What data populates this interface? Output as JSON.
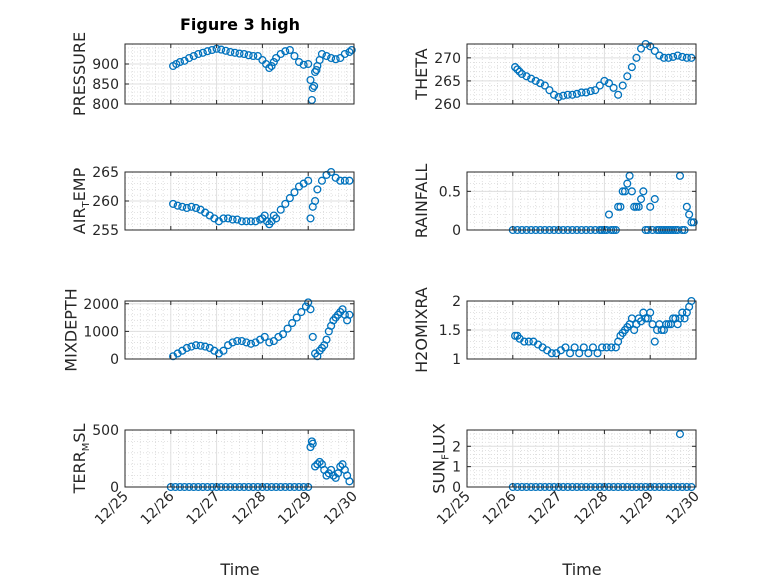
{
  "figure": {
    "title": "Figure 3 high",
    "xlabel": "Time"
  },
  "colors": {
    "marker": "#0072BD",
    "axis": "#262626",
    "grid_major": "#DFDFDF",
    "grid_minor": "#D9D9D9",
    "background": "#FFFFFF"
  },
  "chart_data": [
    {
      "type": "scatter",
      "name": "PRESSURE",
      "ylabel_parts": [
        [
          "PRESSURE",
          ""
        ]
      ],
      "xlim": [
        0,
        5
      ],
      "ylim": [
        800,
        950
      ],
      "yticks": [
        800,
        850,
        900
      ],
      "ytick_labels": [
        "800",
        "850",
        "900"
      ],
      "xticks": [
        0,
        1,
        2,
        3,
        4,
        5
      ],
      "xtick_labels": [
        "12/25",
        "12/26",
        "12/27",
        "12/28",
        "12/29",
        "12/30"
      ],
      "show_xticklabels": false,
      "x": [
        1.05,
        1.12,
        1.2,
        1.3,
        1.4,
        1.5,
        1.6,
        1.7,
        1.8,
        1.9,
        2.0,
        2.1,
        2.2,
        2.3,
        2.4,
        2.5,
        2.6,
        2.7,
        2.8,
        2.9,
        3.0,
        3.08,
        3.15,
        3.2,
        3.25,
        3.3,
        3.4,
        3.5,
        3.6,
        3.7,
        3.8,
        3.9,
        4.0,
        4.05,
        4.08,
        4.1,
        4.13,
        4.15,
        4.18,
        4.2,
        4.25,
        4.3,
        4.4,
        4.5,
        4.6,
        4.7,
        4.8,
        4.9,
        4.95
      ],
      "y": [
        895,
        900,
        905,
        908,
        915,
        920,
        925,
        928,
        932,
        935,
        938,
        936,
        933,
        930,
        928,
        926,
        925,
        922,
        920,
        920,
        910,
        900,
        890,
        895,
        905,
        915,
        925,
        932,
        935,
        920,
        905,
        898,
        900,
        860,
        810,
        840,
        845,
        880,
        885,
        895,
        910,
        925,
        920,
        915,
        912,
        915,
        925,
        930,
        935
      ]
    },
    {
      "type": "scatter",
      "name": "THETA",
      "ylabel_parts": [
        [
          "THETA",
          ""
        ]
      ],
      "xlim": [
        0,
        5
      ],
      "ylim": [
        260,
        273
      ],
      "yticks": [
        260,
        265,
        270
      ],
      "ytick_labels": [
        "260",
        "265",
        "270"
      ],
      "xticks": [
        0,
        1,
        2,
        3,
        4,
        5
      ],
      "xtick_labels": [
        "12/25",
        "12/26",
        "12/27",
        "12/28",
        "12/29",
        "12/30"
      ],
      "show_xticklabels": false,
      "x": [
        1.05,
        1.1,
        1.15,
        1.2,
        1.3,
        1.4,
        1.5,
        1.6,
        1.7,
        1.8,
        1.9,
        2.0,
        2.1,
        2.2,
        2.3,
        2.4,
        2.5,
        2.6,
        2.7,
        2.8,
        2.9,
        3.0,
        3.1,
        3.2,
        3.3,
        3.4,
        3.5,
        3.6,
        3.7,
        3.8,
        3.9,
        4.0,
        4.1,
        4.2,
        4.3,
        4.4,
        4.5,
        4.6,
        4.7,
        4.8,
        4.9
      ],
      "y": [
        268,
        267.5,
        267,
        266.5,
        266,
        265.5,
        265,
        264.5,
        264,
        263,
        262,
        261.5,
        261.8,
        262,
        262,
        262.2,
        262.5,
        262.5,
        262.8,
        263,
        264,
        265,
        264.5,
        263.5,
        262,
        264,
        266,
        268,
        270,
        272,
        273,
        272.5,
        271.5,
        270.5,
        270,
        270,
        270.2,
        270.5,
        270.2,
        270,
        270
      ]
    },
    {
      "type": "scatter",
      "name": "AIR_TEMP",
      "ylabel_parts": [
        [
          "AIR",
          ""
        ],
        [
          "T",
          "sub"
        ],
        [
          "EMP",
          ""
        ]
      ],
      "xlim": [
        0,
        5
      ],
      "ylim": [
        255,
        265
      ],
      "yticks": [
        255,
        260,
        265
      ],
      "ytick_labels": [
        "255",
        "260",
        "265"
      ],
      "xticks": [
        0,
        1,
        2,
        3,
        4,
        5
      ],
      "xtick_labels": [
        "12/25",
        "12/26",
        "12/27",
        "12/28",
        "12/29",
        "12/30"
      ],
      "show_xticklabels": false,
      "x": [
        1.05,
        1.15,
        1.25,
        1.35,
        1.45,
        1.55,
        1.65,
        1.75,
        1.85,
        1.95,
        2.05,
        2.15,
        2.25,
        2.35,
        2.45,
        2.55,
        2.65,
        2.75,
        2.85,
        2.95,
        3.0,
        3.05,
        3.1,
        3.15,
        3.2,
        3.25,
        3.3,
        3.4,
        3.5,
        3.6,
        3.7,
        3.8,
        3.9,
        4.0,
        4.05,
        4.1,
        4.15,
        4.2,
        4.3,
        4.4,
        4.5,
        4.6,
        4.7,
        4.8,
        4.9
      ],
      "y": [
        259.5,
        259.2,
        259,
        258.8,
        259,
        258.8,
        258.5,
        258,
        257.5,
        257,
        256.5,
        257,
        257,
        256.8,
        256.8,
        256.5,
        256.5,
        256.5,
        256.5,
        256.8,
        257,
        257.5,
        256.5,
        256,
        256.5,
        257.5,
        257,
        258.5,
        259.5,
        260.5,
        261.5,
        262.5,
        263,
        263.5,
        257,
        259,
        260,
        262,
        263.5,
        264.5,
        265,
        264,
        263.5,
        263.5,
        263.5
      ]
    },
    {
      "type": "scatter",
      "name": "RAINFALL",
      "ylabel_parts": [
        [
          "RAINFALL",
          ""
        ]
      ],
      "xlim": [
        0,
        5
      ],
      "ylim": [
        0,
        0.75
      ],
      "yticks": [
        0,
        0.5
      ],
      "ytick_labels": [
        "0",
        "0.5"
      ],
      "xticks": [
        0,
        1,
        2,
        3,
        4,
        5
      ],
      "xtick_labels": [
        "12/25",
        "12/26",
        "12/27",
        "12/28",
        "12/29",
        "12/30"
      ],
      "show_xticklabels": false,
      "x": [
        1.0,
        1.1,
        1.2,
        1.3,
        1.4,
        1.5,
        1.6,
        1.7,
        1.8,
        1.9,
        2.0,
        2.1,
        2.2,
        2.3,
        2.4,
        2.5,
        2.6,
        2.7,
        2.8,
        2.9,
        2.95,
        3.0,
        3.05,
        3.1,
        3.15,
        3.2,
        3.25,
        3.3,
        3.35,
        3.4,
        3.45,
        3.5,
        3.55,
        3.6,
        3.65,
        3.7,
        3.75,
        3.8,
        3.85,
        3.9,
        3.95,
        4.0,
        4.05,
        4.1,
        4.15,
        4.2,
        4.25,
        4.3,
        4.35,
        4.4,
        4.45,
        4.5,
        4.55,
        4.6,
        4.65,
        4.7,
        4.75,
        4.8,
        4.85,
        4.9,
        4.95
      ],
      "y": [
        0,
        0,
        0,
        0,
        0,
        0,
        0,
        0,
        0,
        0,
        0,
        0,
        0,
        0,
        0,
        0,
        0,
        0,
        0,
        0,
        0,
        0,
        0,
        0.2,
        0,
        0,
        0,
        0.3,
        0.3,
        0.5,
        0.5,
        0.6,
        0.7,
        0.5,
        0.3,
        0.3,
        0.3,
        0.4,
        0.5,
        0,
        0,
        0.3,
        0,
        0.4,
        0,
        0,
        0,
        0,
        0,
        0,
        0,
        0,
        0,
        0,
        0.7,
        0,
        0,
        0.3,
        0.2,
        0.1,
        0.1
      ]
    },
    {
      "type": "scatter",
      "name": "MIXDEPTH",
      "ylabel_parts": [
        [
          "MIXDEPTH",
          ""
        ]
      ],
      "xlim": [
        0,
        5
      ],
      "ylim": [
        0,
        2100
      ],
      "yticks": [
        0,
        1000,
        2000
      ],
      "ytick_labels": [
        "0",
        "1000",
        "2000"
      ],
      "xticks": [
        0,
        1,
        2,
        3,
        4,
        5
      ],
      "xtick_labels": [
        "12/25",
        "12/26",
        "12/27",
        "12/28",
        "12/29",
        "12/30"
      ],
      "show_xticklabels": false,
      "x": [
        1.05,
        1.15,
        1.25,
        1.35,
        1.45,
        1.55,
        1.65,
        1.75,
        1.85,
        1.95,
        2.05,
        2.15,
        2.25,
        2.35,
        2.45,
        2.55,
        2.65,
        2.75,
        2.85,
        2.95,
        3.05,
        3.15,
        3.25,
        3.35,
        3.45,
        3.55,
        3.65,
        3.75,
        3.85,
        3.95,
        4.0,
        4.05,
        4.1,
        4.15,
        4.2,
        4.25,
        4.3,
        4.35,
        4.4,
        4.45,
        4.5,
        4.55,
        4.6,
        4.65,
        4.7,
        4.75,
        4.8,
        4.85,
        4.9
      ],
      "y": [
        100,
        200,
        300,
        400,
        450,
        500,
        480,
        450,
        400,
        300,
        200,
        300,
        500,
        600,
        650,
        650,
        600,
        550,
        600,
        700,
        800,
        600,
        650,
        800,
        900,
        1100,
        1300,
        1500,
        1700,
        1900,
        2050,
        1800,
        800,
        200,
        100,
        300,
        400,
        500,
        700,
        1000,
        1200,
        1400,
        1500,
        1600,
        1700,
        1800,
        1600,
        1400,
        1600
      ]
    },
    {
      "type": "scatter",
      "name": "H2OMIXRA",
      "ylabel_parts": [
        [
          "H2OMIXRA",
          ""
        ]
      ],
      "xlim": [
        0,
        5
      ],
      "ylim": [
        1,
        2
      ],
      "yticks": [
        1,
        1.5,
        2
      ],
      "ytick_labels": [
        "1",
        "1.5",
        "2"
      ],
      "xticks": [
        0,
        1,
        2,
        3,
        4,
        5
      ],
      "xtick_labels": [
        "12/25",
        "12/26",
        "12/27",
        "12/28",
        "12/29",
        "12/30"
      ],
      "show_xticklabels": false,
      "x": [
        1.05,
        1.1,
        1.15,
        1.25,
        1.35,
        1.45,
        1.55,
        1.65,
        1.75,
        1.85,
        1.95,
        2.05,
        2.15,
        2.25,
        2.35,
        2.45,
        2.55,
        2.65,
        2.75,
        2.85,
        2.95,
        3.05,
        3.15,
        3.25,
        3.3,
        3.35,
        3.4,
        3.45,
        3.5,
        3.55,
        3.6,
        3.65,
        3.7,
        3.75,
        3.8,
        3.85,
        3.9,
        3.95,
        4.0,
        4.05,
        4.1,
        4.15,
        4.2,
        4.25,
        4.3,
        4.35,
        4.4,
        4.45,
        4.5,
        4.55,
        4.6,
        4.65,
        4.7,
        4.75,
        4.8,
        4.85,
        4.9
      ],
      "y": [
        1.4,
        1.4,
        1.35,
        1.3,
        1.3,
        1.3,
        1.25,
        1.2,
        1.15,
        1.1,
        1.1,
        1.15,
        1.2,
        1.1,
        1.2,
        1.1,
        1.2,
        1.1,
        1.2,
        1.1,
        1.2,
        1.2,
        1.2,
        1.2,
        1.3,
        1.4,
        1.45,
        1.5,
        1.55,
        1.6,
        1.7,
        1.5,
        1.6,
        1.7,
        1.65,
        1.8,
        1.7,
        1.7,
        1.8,
        1.6,
        1.3,
        1.5,
        1.6,
        1.5,
        1.5,
        1.6,
        1.6,
        1.6,
        1.7,
        1.7,
        1.6,
        1.7,
        1.8,
        1.7,
        1.8,
        1.9,
        2.0
      ]
    },
    {
      "type": "scatter",
      "name": "TERR_MSL",
      "ylabel_parts": [
        [
          "TERR",
          ""
        ],
        [
          "M",
          "sub"
        ],
        [
          "SL",
          ""
        ]
      ],
      "xlim": [
        0,
        5
      ],
      "ylim": [
        0,
        500
      ],
      "yticks": [
        0,
        500
      ],
      "ytick_labels": [
        "0",
        "500"
      ],
      "xticks": [
        0,
        1,
        2,
        3,
        4,
        5
      ],
      "xtick_labels": [
        "12/25",
        "12/26",
        "12/27",
        "12/28",
        "12/29",
        "12/30"
      ],
      "show_xticklabels": true,
      "x": [
        1.0,
        1.1,
        1.2,
        1.3,
        1.4,
        1.5,
        1.6,
        1.7,
        1.8,
        1.9,
        2.0,
        2.1,
        2.2,
        2.3,
        2.4,
        2.5,
        2.6,
        2.7,
        2.8,
        2.9,
        3.0,
        3.1,
        3.2,
        3.3,
        3.4,
        3.5,
        3.6,
        3.7,
        3.8,
        3.9,
        4.0,
        4.05,
        4.08,
        4.1,
        4.15,
        4.2,
        4.25,
        4.3,
        4.35,
        4.4,
        4.45,
        4.5,
        4.55,
        4.6,
        4.65,
        4.7,
        4.75,
        4.8,
        4.85,
        4.9
      ],
      "y": [
        0,
        0,
        0,
        0,
        0,
        0,
        0,
        0,
        0,
        0,
        0,
        0,
        0,
        0,
        0,
        0,
        0,
        0,
        0,
        0,
        0,
        0,
        0,
        0,
        0,
        0,
        0,
        0,
        0,
        0,
        0,
        350,
        400,
        380,
        180,
        200,
        220,
        200,
        150,
        100,
        120,
        150,
        100,
        80,
        120,
        180,
        200,
        150,
        100,
        50
      ]
    },
    {
      "type": "scatter",
      "name": "SUN_FLUX",
      "ylabel_parts": [
        [
          "SUN",
          ""
        ],
        [
          "F",
          "sub"
        ],
        [
          "LUX",
          ""
        ]
      ],
      "xlim": [
        0,
        5
      ],
      "ylim": [
        0,
        2.8
      ],
      "yticks": [
        0,
        1,
        2
      ],
      "ytick_labels": [
        "0",
        "1",
        "2"
      ],
      "xticks": [
        0,
        1,
        2,
        3,
        4,
        5
      ],
      "xtick_labels": [
        "12/25",
        "12/26",
        "12/27",
        "12/28",
        "12/29",
        "12/30"
      ],
      "show_xticklabels": true,
      "x": [
        1.0,
        1.1,
        1.2,
        1.3,
        1.4,
        1.5,
        1.6,
        1.7,
        1.8,
        1.9,
        2.0,
        2.1,
        2.2,
        2.3,
        2.4,
        2.5,
        2.6,
        2.7,
        2.8,
        2.9,
        3.0,
        3.1,
        3.2,
        3.3,
        3.4,
        3.5,
        3.6,
        3.7,
        3.8,
        3.9,
        4.0,
        4.1,
        4.2,
        4.3,
        4.4,
        4.5,
        4.6,
        4.65,
        4.7,
        4.8,
        4.9
      ],
      "y": [
        0,
        0,
        0,
        0,
        0,
        0,
        0,
        0,
        0,
        0,
        0,
        0,
        0,
        0,
        0,
        0,
        0,
        0,
        0,
        0,
        0,
        0,
        0,
        0,
        0,
        0,
        0,
        0,
        0,
        0,
        0,
        0,
        0,
        0,
        0,
        0,
        0,
        2.6,
        0,
        0,
        0
      ]
    }
  ]
}
